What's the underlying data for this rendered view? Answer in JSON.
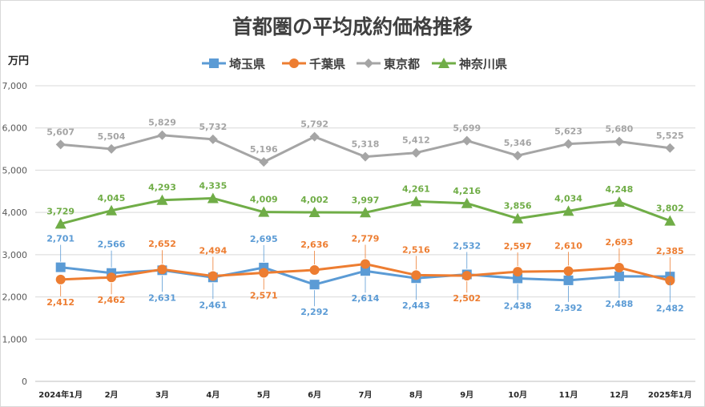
{
  "chart_data": {
    "type": "line",
    "title": "首都圏の平均成約価格推移",
    "ylabel": "万円",
    "xlabel": "",
    "ylim": [
      0,
      7000
    ],
    "yticks": [
      0,
      1000,
      2000,
      3000,
      4000,
      5000,
      6000,
      7000
    ],
    "ytick_labels": [
      "0",
      "1,000",
      "2,000",
      "3,000",
      "4,000",
      "5,000",
      "6,000",
      "7,000"
    ],
    "grid": true,
    "legend": "top",
    "categories": [
      "2024年1月",
      "2月",
      "3月",
      "4月",
      "5月",
      "6月",
      "7月",
      "8月",
      "9月",
      "10月",
      "11月",
      "12月",
      "2025年1月"
    ],
    "series": [
      {
        "name": "埼玉県",
        "color": "#5b9bd5",
        "marker": "square",
        "values": [
          2701,
          2566,
          2631,
          2461,
          2695,
          2292,
          2614,
          2443,
          2532,
          2438,
          2392,
          2488,
          2482
        ],
        "labels": [
          "2,701",
          "2,566",
          "2,631",
          "2,461",
          "2,695",
          "2,292",
          "2,614",
          "2,443",
          "2,532",
          "2,438",
          "2,392",
          "2,488",
          "2,482"
        ]
      },
      {
        "name": "千葉県",
        "color": "#ed7d31",
        "marker": "circle",
        "values": [
          2412,
          2462,
          2652,
          2494,
          2571,
          2636,
          2779,
          2516,
          2502,
          2597,
          2610,
          2693,
          2385
        ],
        "labels": [
          "2,412",
          "2,462",
          "2,652",
          "2,494",
          "2,571",
          "2,636",
          "2,779",
          "2,516",
          "2,502",
          "2,597",
          "2,610",
          "2,693",
          "2,385"
        ]
      },
      {
        "name": "東京都",
        "color": "#a5a5a5",
        "marker": "diamond",
        "values": [
          5607,
          5504,
          5829,
          5732,
          5196,
          5792,
          5318,
          5412,
          5699,
          5346,
          5623,
          5680,
          5525
        ],
        "labels": [
          "5,607",
          "5,504",
          "5,829",
          "5,732",
          "5,196",
          "5,792",
          "5,318",
          "5,412",
          "5,699",
          "5,346",
          "5,623",
          "5,680",
          "5,525"
        ]
      },
      {
        "name": "神奈川県",
        "color": "#70ad47",
        "marker": "triangle",
        "values": [
          3729,
          4045,
          4293,
          4335,
          4009,
          4002,
          3997,
          4261,
          4216,
          3856,
          4034,
          4248,
          3802
        ],
        "labels": [
          "3,729",
          "4,045",
          "4,293",
          "4,335",
          "4,009",
          "4,002",
          "3,997",
          "4,261",
          "4,216",
          "3,856",
          "4,034",
          "4,248",
          "3,802"
        ]
      }
    ]
  }
}
